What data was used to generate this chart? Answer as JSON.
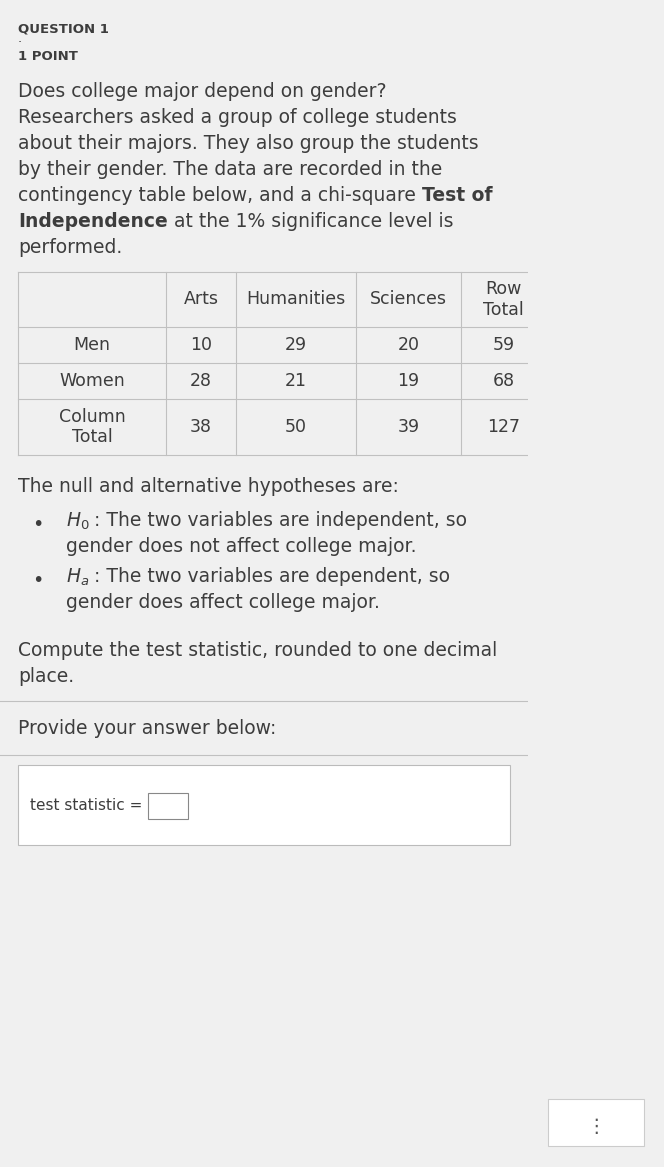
{
  "bg_color": "#f0f0f0",
  "content_bg": "#ffffff",
  "question_label": "QUESTION 1",
  "point_label": "1 POINT",
  "table_headers": [
    "",
    "Arts",
    "Humanities",
    "Sciences",
    "Row\nTotal"
  ],
  "table_rows": [
    [
      "Men",
      "10",
      "29",
      "20",
      "59"
    ],
    [
      "Women",
      "28",
      "21",
      "19",
      "68"
    ],
    [
      "Column\nTotal",
      "38",
      "50",
      "39",
      "127"
    ]
  ],
  "hypotheses_intro": "The null and alternative hypotheses are:",
  "h0_line1": ": The two variables are independent, so",
  "h0_line2": "gender does not affect college major.",
  "ha_line1": ": The two variables are dependent, so",
  "ha_line2": "gender does affect college major.",
  "compute_line1": "Compute the test statistic, rounded to one decimal",
  "compute_line2": "place.",
  "provide_text": "Provide your answer below:",
  "answer_label": "test statistic =",
  "font_color": "#3d3d3d",
  "line_color": "#c0c0c0",
  "font_size_header": 9.5,
  "font_size_body": 13.5,
  "font_size_table": 12.5,
  "para_lines": [
    [
      "Does college major depend on gender?"
    ],
    [
      "Researchers asked a group of college students"
    ],
    [
      "about their majors. They also group the students"
    ],
    [
      "by their gender. The data are recorded in the"
    ],
    [
      "contingency table below, and a chi-square ",
      "Test of"
    ],
    [
      "Independence",
      " at the 1% significance level is"
    ],
    [
      "performed."
    ]
  ],
  "para_bold": [
    [
      false
    ],
    [
      false
    ],
    [
      false
    ],
    [
      false
    ],
    [
      false,
      true
    ],
    [
      true,
      false
    ],
    [
      false
    ]
  ]
}
